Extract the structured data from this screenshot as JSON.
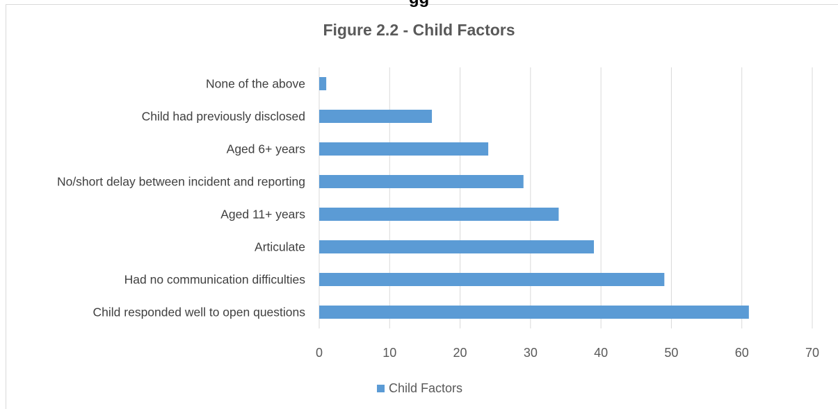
{
  "header_fragment": "gg",
  "chart_data": {
    "type": "bar",
    "orientation": "horizontal",
    "title": "Figure 2.2 - Child Factors",
    "categories": [
      "None of the above",
      "Child had previously disclosed",
      "Aged 6+ years",
      "No/short delay between incident and reporting",
      "Aged 11+ years",
      "Articulate",
      "Had no communication difficulties",
      "Child responded well to open questions"
    ],
    "series": [
      {
        "name": "Child Factors",
        "values": [
          1,
          16,
          24,
          29,
          34,
          39,
          49,
          61
        ],
        "color": "#5b9bd5"
      }
    ],
    "xlim": [
      0,
      70
    ],
    "xticks": [
      0,
      10,
      20,
      30,
      40,
      50,
      60,
      70
    ],
    "grid": true,
    "legend_position": "bottom",
    "xlabel": "",
    "ylabel": ""
  }
}
